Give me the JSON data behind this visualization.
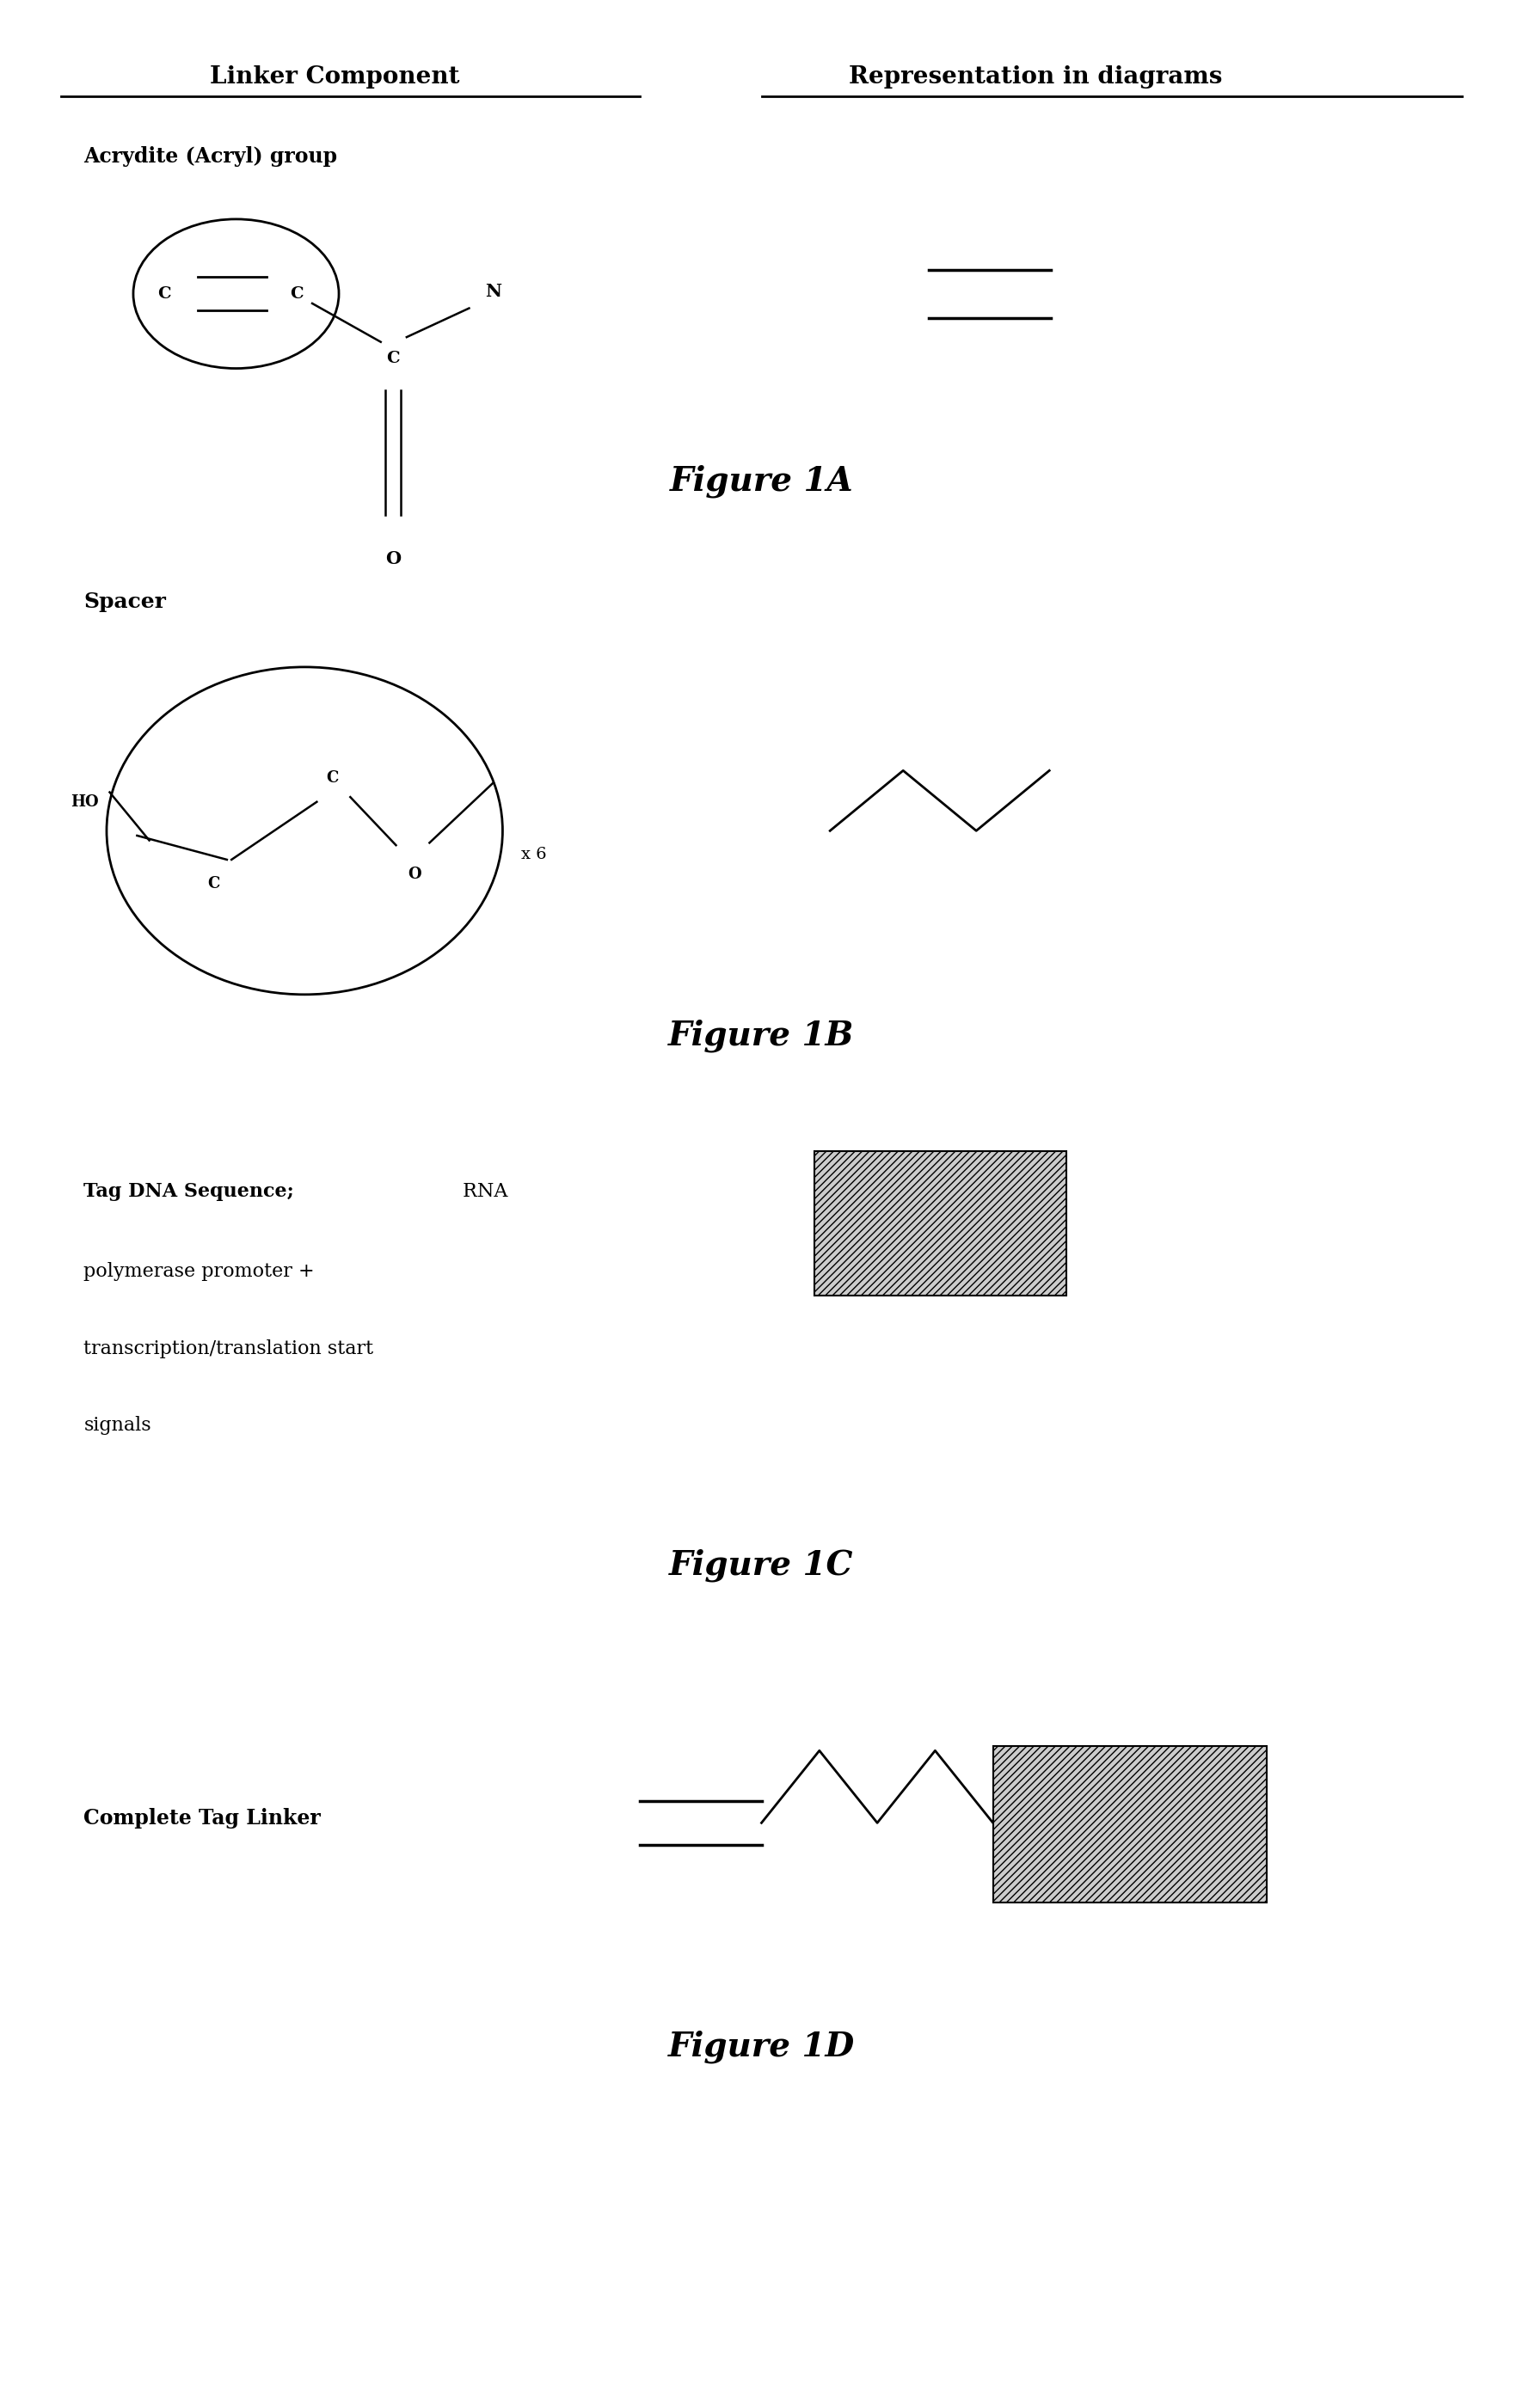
{
  "fig_width": 17.71,
  "fig_height": 28.01,
  "bg_color": "#ffffff",
  "header_linker": "Linker Component",
  "header_repr": "Representation in diagrams",
  "figA_label": "Figure 1A",
  "figB_label": "Figure 1B",
  "figC_label": "Figure 1C",
  "figD_label": "Figure 1D",
  "acrydite_label": "Acrydite (Acryl) group",
  "spacer_label": "Spacer",
  "tagdna_bold": "Tag DNA Sequence;",
  "tagdna_line1": " RNA",
  "tagdna_line2": "polymerase promoter +",
  "tagdna_line3": "transcription/translation start",
  "tagdna_line4": "signals",
  "complete_label": "Complete Tag Linker",
  "line_color": "#000000"
}
